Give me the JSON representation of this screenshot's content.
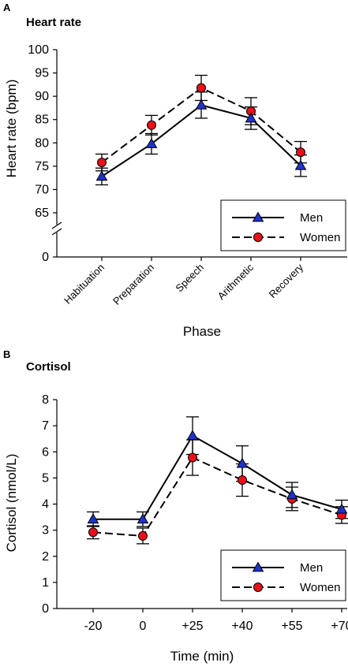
{
  "chart_data": [
    {
      "type": "line",
      "panel": "A",
      "title": "Heart rate",
      "xlabel": "Phase",
      "ylabel": "Heart rate (bpm)",
      "categories": [
        "Habituation",
        "Preparation",
        "Speech",
        "Arithmetic",
        "Recovery"
      ],
      "yticks": [
        "100",
        "95",
        "90",
        "85",
        "80",
        "75",
        "70",
        "65",
        "0"
      ],
      "ylim": [
        65,
        100
      ],
      "axis_break": true,
      "legend_position": "bottom-right",
      "series": [
        {
          "name": "Men",
          "values": [
            72.8,
            79.8,
            88.1,
            85.3,
            75.1
          ],
          "errors": [
            1.8,
            2.2,
            2.8,
            2.4,
            2.3
          ],
          "marker": "triangle",
          "marker_color": "#1f33cc",
          "line_style": "solid"
        },
        {
          "name": "Women",
          "values": [
            75.8,
            83.8,
            91.8,
            86.8,
            78.0
          ],
          "errors": [
            1.8,
            2.1,
            2.7,
            2.9,
            2.3
          ],
          "marker": "circle",
          "marker_color": "#e8111a",
          "line_style": "dashed"
        }
      ]
    },
    {
      "type": "line",
      "panel": "B",
      "title": "Cortisol",
      "xlabel": "Time (min)",
      "ylabel": "Cortisol (nmol/L)",
      "categories": [
        "-20",
        "0",
        "+25",
        "+40",
        "+55",
        "+70"
      ],
      "yticks": [
        "8",
        "7",
        "6",
        "5",
        "4",
        "3",
        "2",
        "1",
        "0"
      ],
      "ylim": [
        0,
        8
      ],
      "legend_position": "bottom-right",
      "series": [
        {
          "name": "Men",
          "values": [
            3.42,
            3.42,
            6.62,
            5.55,
            4.35,
            3.8
          ],
          "errors": [
            0.28,
            0.28,
            0.72,
            0.68,
            0.48,
            0.35
          ],
          "marker": "triangle",
          "marker_color": "#1f33cc",
          "line_style": "solid"
        },
        {
          "name": "Women",
          "values": [
            2.92,
            2.78,
            5.78,
            4.92,
            4.2,
            3.58
          ],
          "errors": [
            0.25,
            0.3,
            0.68,
            0.62,
            0.45,
            0.32
          ],
          "marker": "circle",
          "marker_color": "#e8111a",
          "line_style": "dashed"
        }
      ]
    }
  ]
}
